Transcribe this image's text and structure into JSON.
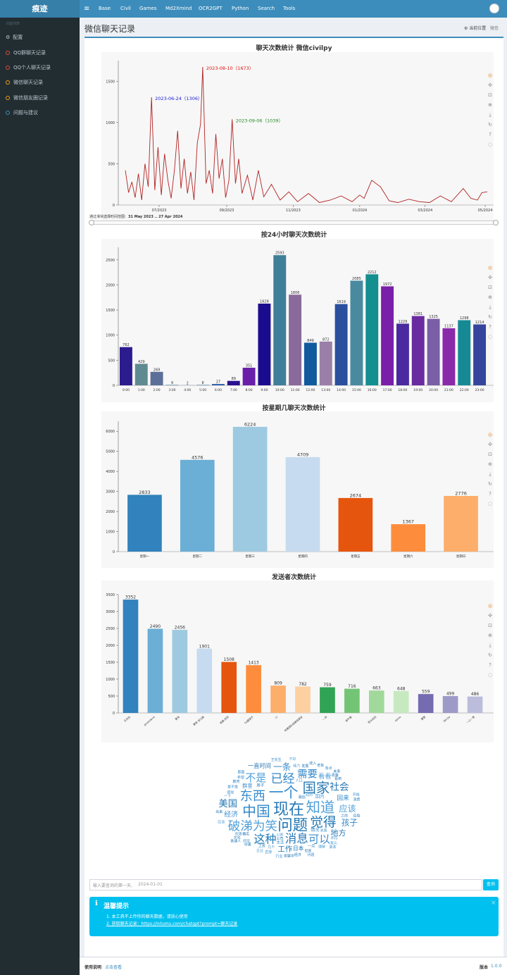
{
  "app": {
    "brand": "痕迹",
    "menu_icon": "≡"
  },
  "topnav": [
    "Base",
    "Civil",
    "Games",
    "Md2Xmind",
    "OCR2GPT",
    "Python",
    "Search",
    "Tools"
  ],
  "sidebar": {
    "header": "功能列表",
    "items": [
      {
        "label": "配置",
        "icon": "gear-icon",
        "color": "#b8c7ce"
      },
      {
        "label": "QQ群聊天记录",
        "icon": "ring-icon",
        "color": "#dd4b39"
      },
      {
        "label": "QQ个人聊天记录",
        "icon": "ring-icon",
        "color": "#dd4b39"
      },
      {
        "label": "微信聊天记录",
        "icon": "ring-icon",
        "color": "#f39c12"
      },
      {
        "label": "微信朋友圈记录",
        "icon": "ring-icon",
        "color": "#f39c12"
      },
      {
        "label": "问题与建议",
        "icon": "ring-icon",
        "color": "#3c8dbc"
      }
    ]
  },
  "page": {
    "title": "微信聊天记录",
    "crumb_location": "当前位置",
    "crumb_current": "微信"
  },
  "toolbox_icons": [
    "palette-icon",
    "move-icon",
    "zoom-select-icon",
    "zoom-reset-icon",
    "download-icon",
    "refresh-icon",
    "help-icon",
    "hide-icon"
  ],
  "chart_data": [
    {
      "type": "line",
      "title": "聊天次数统计 微信civilpy",
      "ylim": [
        0,
        1750
      ],
      "yticks": [
        0,
        500,
        1000,
        1500
      ],
      "xticks": [
        "07/2023",
        "09/2023",
        "11/2023",
        "01/2024",
        "03/2024",
        "05/2024"
      ],
      "x": [
        "2023-05-31",
        "2023-06-03",
        "2023-06-06",
        "2023-06-09",
        "2023-06-12",
        "2023-06-15",
        "2023-06-18",
        "2023-06-21",
        "2023-06-24",
        "2023-06-27",
        "2023-06-30",
        "2023-07-03",
        "2023-07-06",
        "2023-07-09",
        "2023-07-12",
        "2023-07-15",
        "2023-07-18",
        "2023-07-21",
        "2023-07-24",
        "2023-07-27",
        "2023-07-30",
        "2023-08-02",
        "2023-08-05",
        "2023-08-08",
        "2023-08-10",
        "2023-08-13",
        "2023-08-16",
        "2023-08-19",
        "2023-08-22",
        "2023-08-25",
        "2023-08-28",
        "2023-08-31",
        "2023-09-03",
        "2023-09-06",
        "2023-09-09",
        "2023-09-12",
        "2023-09-15",
        "2023-09-20",
        "2023-09-25",
        "2023-09-30",
        "2023-10-05",
        "2023-10-12",
        "2023-10-20",
        "2023-10-28",
        "2023-11-05",
        "2023-11-15",
        "2023-11-25",
        "2023-12-05",
        "2023-12-15",
        "2023-12-25",
        "2024-01-01",
        "2024-01-05",
        "2024-01-12",
        "2024-01-20",
        "2024-01-28",
        "2024-02-05",
        "2024-02-15",
        "2024-02-25",
        "2024-03-05",
        "2024-03-15",
        "2024-03-25",
        "2024-04-05",
        "2024-04-12",
        "2024-04-18",
        "2024-04-22",
        "2024-04-27"
      ],
      "values": [
        420,
        150,
        280,
        90,
        380,
        60,
        500,
        220,
        1306,
        180,
        700,
        120,
        620,
        300,
        80,
        420,
        900,
        200,
        560,
        140,
        400,
        60,
        750,
        980,
        1673,
        260,
        420,
        140,
        860,
        320,
        560,
        90,
        300,
        1039,
        260,
        560,
        140,
        360,
        60,
        420,
        100,
        250,
        60,
        160,
        40,
        140,
        30,
        60,
        110,
        40,
        120,
        80,
        300,
        220,
        50,
        30,
        70,
        40,
        30,
        110,
        40,
        200,
        80,
        60,
        150,
        160
      ],
      "markers": [
        {
          "label": "2023-06-24（1306）",
          "color": "#1a1ad6"
        },
        {
          "label": "2023-08-10（1673）",
          "color": "#e01010"
        },
        {
          "label": "2023-09-06（1039）",
          "color": "#228b22"
        }
      ],
      "slider_label": "通过滑块选择时间范围：",
      "slider_range": "31 May 2023 .. 27 Apr 2024"
    },
    {
      "type": "bar",
      "title": "按24小时聊天次数统计",
      "ylim": [
        0,
        2750
      ],
      "yticks": [
        0,
        500,
        1000,
        1500,
        2000,
        2500
      ],
      "categories": [
        "0:00",
        "1:00",
        "2:00",
        "3:00",
        "4:00",
        "5:00",
        "6:00",
        "7:00",
        "8:00",
        "9:00",
        "10:00",
        "11:00",
        "12:00",
        "13:00",
        "14:00",
        "15:00",
        "16:00",
        "17:00",
        "18:00",
        "19:00",
        "20:00",
        "21:00",
        "22:00",
        "23:00"
      ],
      "values": [
        762,
        429,
        269,
        9,
        2,
        8,
        27,
        89,
        351,
        1628,
        2593,
        1806,
        849,
        872,
        1619,
        2085,
        2212,
        1972,
        1229,
        1381,
        1325,
        1137,
        1298,
        1214
      ],
      "colors": [
        "#2b1b8f",
        "#5f8a91",
        "#5b6f99",
        "#4e7aa0",
        "#5a6db0",
        "#3d6f98",
        "#2a5faa",
        "#2a128f",
        "#6a1faa",
        "#1b0c8f",
        "#407f99",
        "#8a6a9a",
        "#115a9e",
        "#9a7fa9",
        "#2a4f9e",
        "#4a8aa0",
        "#138f8f",
        "#7a1faa",
        "#4a2a9e",
        "#6a2aa0",
        "#7a5fa6",
        "#8a2aaa",
        "#158a95",
        "#35459e"
      ]
    },
    {
      "type": "bar",
      "title": "按星期几聊天次数统计",
      "ylim": [
        0,
        6500
      ],
      "yticks": [
        0,
        1000,
        2000,
        3000,
        4000,
        5000,
        6000
      ],
      "categories": [
        "星期一",
        "星期二",
        "星期三",
        "星期四",
        "星期五",
        "星期六",
        "星期日"
      ],
      "values": [
        2833,
        4576,
        6224,
        4709,
        2674,
        1367,
        2776
      ],
      "colors": [
        "#3182bd",
        "#6baed6",
        "#9ecae1",
        "#c6dbef",
        "#e6550d",
        "#fd8d3c",
        "#fdae6b"
      ]
    },
    {
      "type": "bar",
      "title": "发送者次数统计",
      "ylim": [
        0,
        3500
      ],
      "yticks": [
        0,
        500,
        1000,
        1500,
        2000,
        2500,
        3000,
        3500
      ],
      "categories": [
        "王先生",
        "gmaxdorm",
        "蒙洛",
        "蒙哥 浙江路",
        "消瘦-空间",
        "5a蒙团子",
        "!!!",
        "听蒙团队结果给朋友",
        "~ 你",
        "金牛座",
        "铁头拉拉",
        "ebme",
        "蒙蒙",
        "0bl-bo",
        "一心一意"
      ],
      "values": [
        3352,
        2490,
        2456,
        1901,
        1508,
        1413,
        809,
        782,
        759,
        716,
        663,
        648,
        559,
        499,
        486
      ],
      "colors": [
        "#3182bd",
        "#6baed6",
        "#9ecae1",
        "#c6dbef",
        "#e6550d",
        "#fd8d3c",
        "#fdae6b",
        "#fdd0a2",
        "#31a354",
        "#74c476",
        "#a1d99b",
        "#c7e9c0",
        "#756bb1",
        "#9e9ac8",
        "#bcbddc"
      ]
    }
  ],
  "wordcloud": {
    "words": [
      "现在",
      "问题",
      "一个",
      "知道",
      "中国",
      "国家",
      "觉得",
      "东西",
      "破涕为笑",
      "已经",
      "消息",
      "这种",
      "可以",
      "不是",
      "需要",
      "社会",
      "美国",
      "一条",
      "应该",
      "孩子",
      "地方",
      "工作",
      "经济",
      "看看",
      "回来",
      "一直时间",
      "日本",
      "群里",
      "国内",
      "情况",
      "房子",
      "一点",
      "关系",
      "政府",
      "生活",
      "确实",
      "工资",
      "之前",
      "底层",
      "是不是",
      "发展",
      "公司",
      "感觉",
      "能力",
      "教育",
      "世界",
      "收入",
      "人口",
      "以前",
      "市场",
      "看到",
      "最后",
      "一下",
      "不好",
      "消费",
      "几个",
      "不行",
      "希望",
      "理解",
      "老板",
      "政策",
      "未来",
      "结婚",
      "直接",
      "有点",
      "经济",
      "文化",
      "行业",
      "企业",
      "资本",
      "发展中",
      "中美",
      "开始",
      "应该",
      "王先生",
      "普通人",
      "出来",
      "问题",
      "美元",
      "里面"
    ]
  },
  "search": {
    "placeholder": "输入要查询的第一天、",
    "date_value": "2024-01-01",
    "button": "查询"
  },
  "tips": {
    "title": "温馨提示",
    "items": [
      "1. 本工具不上传你的聊天数据，请放心使用",
      "2. 获取聊天记录：https://intumu.com/chatgpt?prompt=聊天记录"
    ],
    "close": "×",
    "info_icon": "ℹ"
  },
  "footer": {
    "usage_label": "使用说明",
    "usage_link": "点击查看",
    "version_label": "版本",
    "version": "1.0.0"
  }
}
